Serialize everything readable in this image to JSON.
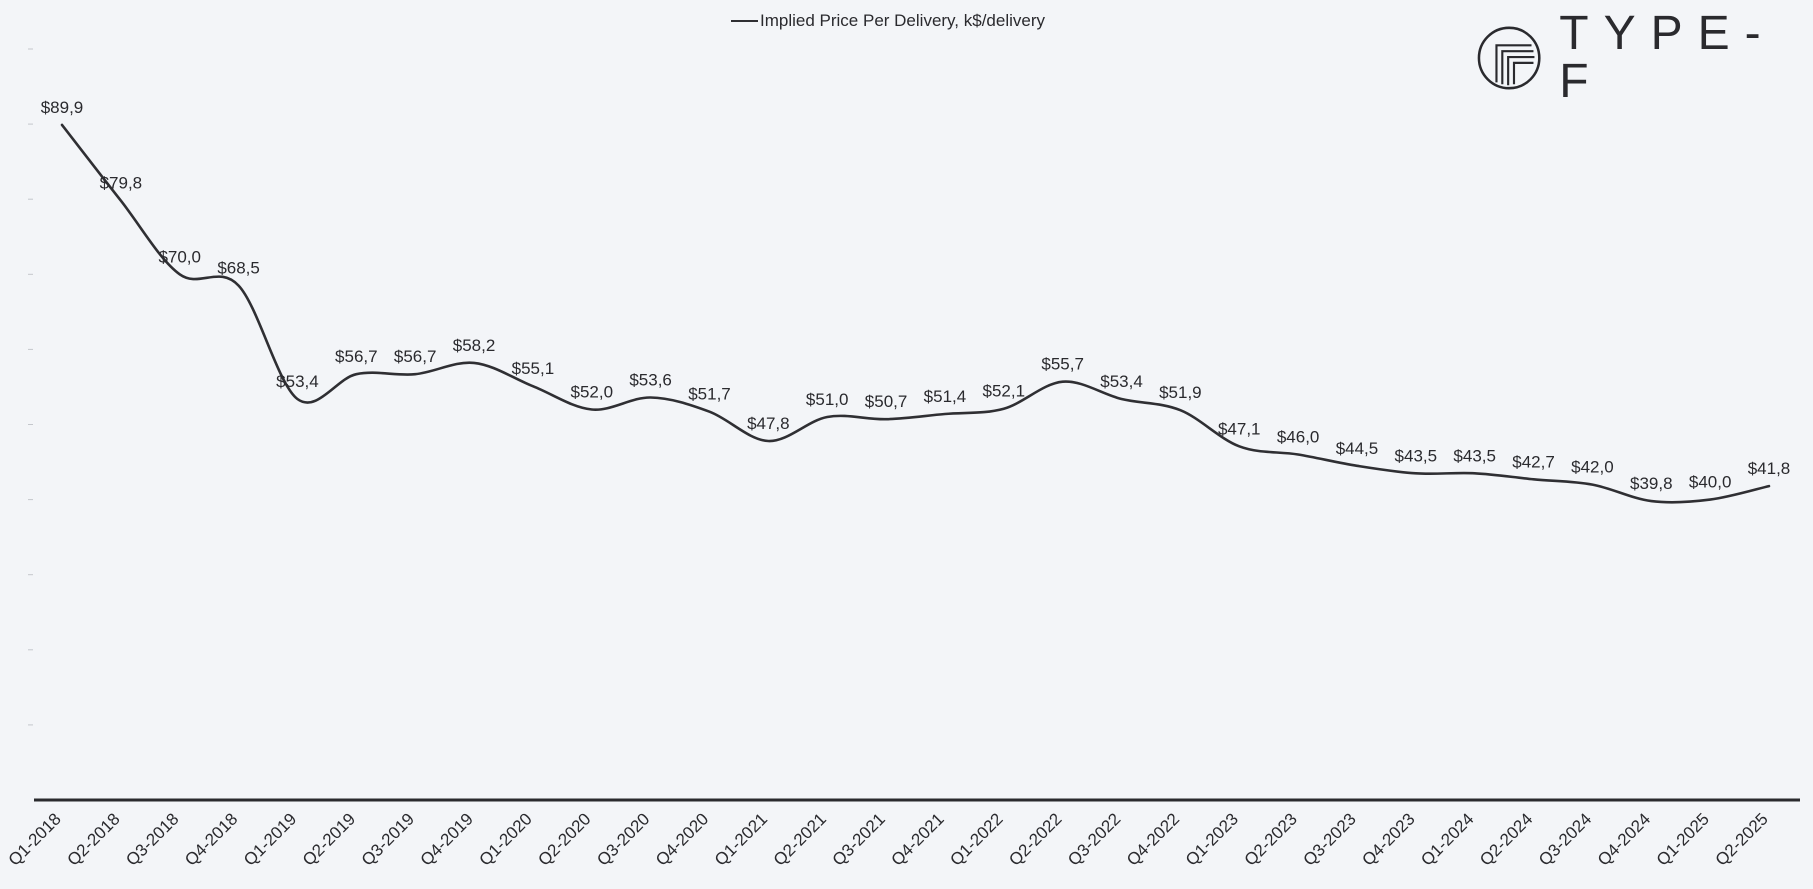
{
  "legend": {
    "label": "Implied Price Per Delivery, k$/delivery",
    "color": "#2f2f33"
  },
  "logo": {
    "text": "TYPE-F",
    "icon": "type-f-logo-icon"
  },
  "chart_data": {
    "type": "line",
    "title": "",
    "xlabel": "",
    "ylabel": "",
    "ylim": [
      0,
      100
    ],
    "grid": false,
    "legend_position": "top-center",
    "categories": [
      "Q1-2018",
      "Q2-2018",
      "Q3-2018",
      "Q4-2018",
      "Q1-2019",
      "Q2-2019",
      "Q3-2019",
      "Q4-2019",
      "Q1-2020",
      "Q2-2020",
      "Q3-2020",
      "Q4-2020",
      "Q1-2021",
      "Q2-2021",
      "Q3-2021",
      "Q4-2021",
      "Q1-2022",
      "Q2-2022",
      "Q3-2022",
      "Q4-2022",
      "Q1-2023",
      "Q2-2023",
      "Q3-2023",
      "Q4-2023",
      "Q1-2024",
      "Q2-2024",
      "Q3-2024",
      "Q4-2024",
      "Q1-2025",
      "Q2-2025"
    ],
    "series": [
      {
        "name": "Implied Price Per Delivery, k$/delivery",
        "color": "#2f2f33",
        "values": [
          89.9,
          79.8,
          70.0,
          68.5,
          53.4,
          56.7,
          56.7,
          58.2,
          55.1,
          52.0,
          53.6,
          51.7,
          47.8,
          51.0,
          50.7,
          51.4,
          52.1,
          55.7,
          53.4,
          51.9,
          47.1,
          46.0,
          44.5,
          43.5,
          43.5,
          42.7,
          42.0,
          39.8,
          40.0,
          41.8
        ],
        "data_labels": [
          "$89,9",
          "$79,8",
          "$70,0",
          "$68,5",
          "$53,4",
          "$56,7",
          "$56,7",
          "$58,2",
          "$55,1",
          "$52,0",
          "$53,6",
          "$51,7",
          "$47,8",
          "$51,0",
          "$50,7",
          "$51,4",
          "$52,1",
          "$55,7",
          "$53,4",
          "$51,9",
          "$47,1",
          "$46,0",
          "$44,5",
          "$43,5",
          "$43,5",
          "$42,7",
          "$42,0",
          "$39,8",
          "$40,0",
          "$41,8"
        ]
      }
    ]
  }
}
